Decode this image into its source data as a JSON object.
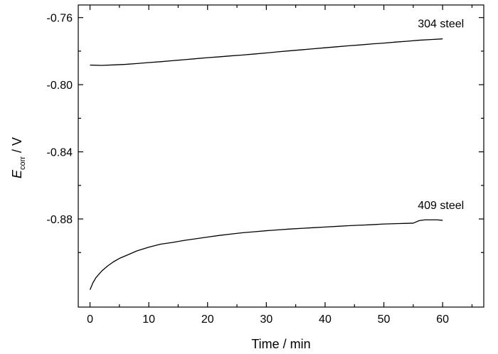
{
  "chart_data": {
    "type": "line",
    "xlabel": "Time / min",
    "ylabel": {
      "main": "E",
      "subscript": "corr",
      "unit": " / V"
    },
    "xlim": [
      -2,
      67
    ],
    "ylim": [
      -0.9325,
      -0.7525
    ],
    "x_ticks": [
      0,
      10,
      20,
      30,
      40,
      50,
      60
    ],
    "x_tick_labels": [
      "0",
      "10",
      "20",
      "30",
      "40",
      "50",
      "60"
    ],
    "y_ticks": [
      -0.76,
      -0.8,
      -0.84,
      -0.88
    ],
    "y_tick_labels": [
      "-0.76",
      "-0.80",
      "-0.84",
      "-0.88"
    ],
    "grid": false,
    "series": [
      {
        "name": "304 steel",
        "x": [
          0,
          2,
          4,
          6,
          8,
          10,
          12,
          14,
          16,
          18,
          20,
          22,
          24,
          26,
          28,
          30,
          32,
          34,
          36,
          38,
          40,
          42,
          44,
          46,
          48,
          50,
          52,
          54,
          56,
          58,
          60
        ],
        "y": [
          -0.7883,
          -0.7885,
          -0.7882,
          -0.7879,
          -0.7874,
          -0.7868,
          -0.7863,
          -0.7857,
          -0.7851,
          -0.7845,
          -0.7839,
          -0.7834,
          -0.7828,
          -0.7823,
          -0.7817,
          -0.7811,
          -0.7804,
          -0.7798,
          -0.7792,
          -0.7786,
          -0.778,
          -0.7774,
          -0.7768,
          -0.7763,
          -0.7757,
          -0.7752,
          -0.7746,
          -0.7741,
          -0.7735,
          -0.7731,
          -0.7727
        ]
      },
      {
        "name": "409 steel",
        "x": [
          0,
          0.5,
          1,
          2,
          3,
          4,
          5,
          6,
          8,
          10,
          12,
          14,
          16,
          18,
          20,
          22,
          24,
          26,
          28,
          30,
          32,
          34,
          36,
          38,
          40,
          42,
          44,
          46,
          48,
          50,
          52,
          54,
          55,
          56,
          57,
          58,
          59,
          60
        ],
        "y": [
          -0.9222,
          -0.918,
          -0.915,
          -0.911,
          -0.908,
          -0.9055,
          -0.9035,
          -0.902,
          -0.899,
          -0.8968,
          -0.895,
          -0.894,
          -0.8928,
          -0.8918,
          -0.8908,
          -0.8898,
          -0.889,
          -0.8882,
          -0.8876,
          -0.887,
          -0.8865,
          -0.886,
          -0.8856,
          -0.8852,
          -0.8848,
          -0.8844,
          -0.884,
          -0.8837,
          -0.8834,
          -0.883,
          -0.8828,
          -0.8826,
          -0.8825,
          -0.881,
          -0.8805,
          -0.8805,
          -0.8805,
          -0.8808
        ]
      }
    ]
  }
}
